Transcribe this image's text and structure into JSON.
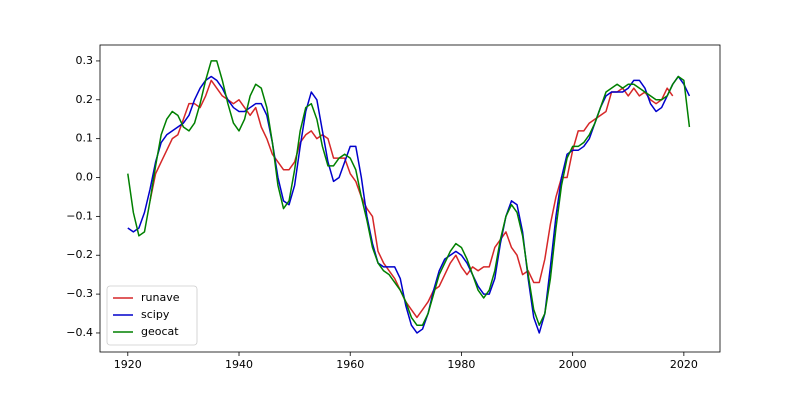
{
  "chart_data": {
    "type": "line",
    "x": [
      1920,
      1921,
      1922,
      1923,
      1924,
      1925,
      1926,
      1927,
      1928,
      1929,
      1930,
      1931,
      1932,
      1933,
      1934,
      1935,
      1936,
      1937,
      1938,
      1939,
      1940,
      1941,
      1942,
      1943,
      1944,
      1945,
      1946,
      1947,
      1948,
      1949,
      1950,
      1951,
      1952,
      1953,
      1954,
      1955,
      1956,
      1957,
      1958,
      1959,
      1960,
      1961,
      1962,
      1963,
      1964,
      1965,
      1966,
      1967,
      1968,
      1969,
      1970,
      1971,
      1972,
      1973,
      1974,
      1975,
      1976,
      1977,
      1978,
      1979,
      1980,
      1981,
      1982,
      1983,
      1984,
      1985,
      1986,
      1987,
      1988,
      1989,
      1990,
      1991,
      1992,
      1993,
      1994,
      1995,
      1996,
      1997,
      1998,
      1999,
      2000,
      2001,
      2002,
      2003,
      2004,
      2005,
      2006,
      2007,
      2008,
      2009,
      2010,
      2011,
      2012,
      2013,
      2014,
      2015,
      2016,
      2017,
      2018,
      2019,
      2020,
      2021
    ],
    "series": [
      {
        "name": "runave",
        "color": "#d62728",
        "values": [
          null,
          null,
          null,
          null,
          -0.06,
          0.01,
          0.04,
          0.07,
          0.1,
          0.11,
          0.15,
          0.19,
          0.19,
          0.18,
          0.21,
          0.25,
          0.23,
          0.21,
          0.2,
          0.19,
          0.2,
          0.18,
          0.16,
          0.18,
          0.13,
          0.1,
          0.06,
          0.04,
          0.02,
          0.02,
          0.04,
          0.09,
          0.11,
          0.12,
          0.1,
          0.11,
          0.1,
          0.05,
          0.05,
          0.05,
          0.01,
          -0.01,
          -0.05,
          -0.08,
          -0.1,
          -0.19,
          -0.22,
          -0.24,
          -0.26,
          -0.29,
          -0.32,
          -0.34,
          -0.36,
          -0.34,
          -0.32,
          -0.29,
          -0.28,
          -0.25,
          -0.22,
          -0.2,
          -0.23,
          -0.25,
          -0.23,
          -0.24,
          -0.23,
          -0.23,
          -0.18,
          -0.16,
          -0.14,
          -0.18,
          -0.2,
          -0.25,
          -0.24,
          -0.27,
          -0.27,
          -0.21,
          -0.12,
          -0.05,
          0.0,
          0.0,
          0.07,
          0.12,
          0.12,
          0.14,
          0.15,
          0.16,
          0.17,
          0.22,
          0.22,
          0.23,
          0.21,
          0.23,
          0.21,
          0.22,
          0.2,
          0.19,
          0.2,
          0.23,
          0.21,
          null,
          null,
          null
        ]
      },
      {
        "name": "scipy",
        "color": "#0000cc",
        "values": [
          -0.13,
          -0.14,
          -0.13,
          -0.09,
          -0.03,
          0.04,
          0.09,
          0.11,
          0.12,
          0.13,
          0.14,
          0.16,
          0.2,
          0.23,
          0.25,
          0.26,
          0.25,
          0.23,
          0.2,
          0.18,
          0.17,
          0.17,
          0.18,
          0.19,
          0.19,
          0.16,
          0.09,
          0.0,
          -0.06,
          -0.07,
          -0.02,
          0.08,
          0.17,
          0.22,
          0.2,
          0.12,
          0.04,
          -0.01,
          0.0,
          0.04,
          0.08,
          0.08,
          0.0,
          -0.1,
          -0.17,
          -0.22,
          -0.23,
          -0.23,
          -0.23,
          -0.26,
          -0.33,
          -0.38,
          -0.4,
          -0.39,
          -0.35,
          -0.29,
          -0.24,
          -0.21,
          -0.2,
          -0.19,
          -0.2,
          -0.22,
          -0.25,
          -0.28,
          -0.3,
          -0.3,
          -0.26,
          -0.17,
          -0.1,
          -0.06,
          -0.07,
          -0.14,
          -0.26,
          -0.36,
          -0.4,
          -0.35,
          -0.23,
          -0.1,
          0.0,
          0.06,
          0.07,
          0.07,
          0.08,
          0.1,
          0.14,
          0.18,
          0.21,
          0.22,
          0.22,
          0.22,
          0.23,
          0.25,
          0.25,
          0.23,
          0.19,
          0.17,
          0.18,
          0.21,
          0.24,
          0.26,
          0.24,
          0.21
        ]
      },
      {
        "name": "geocat",
        "color": "#008000",
        "values": [
          0.01,
          -0.09,
          -0.15,
          -0.14,
          -0.06,
          0.03,
          0.11,
          0.15,
          0.17,
          0.16,
          0.13,
          0.12,
          0.14,
          0.19,
          0.25,
          0.3,
          0.3,
          0.25,
          0.19,
          0.14,
          0.12,
          0.15,
          0.21,
          0.24,
          0.23,
          0.18,
          0.09,
          -0.02,
          -0.08,
          -0.06,
          0.02,
          0.12,
          0.18,
          0.19,
          0.15,
          0.08,
          0.03,
          0.03,
          0.05,
          0.06,
          0.05,
          0.02,
          -0.05,
          -0.11,
          -0.18,
          -0.22,
          -0.24,
          -0.25,
          -0.27,
          -0.29,
          -0.32,
          -0.36,
          -0.38,
          -0.38,
          -0.35,
          -0.3,
          -0.25,
          -0.22,
          -0.19,
          -0.17,
          -0.18,
          -0.21,
          -0.25,
          -0.29,
          -0.31,
          -0.29,
          -0.24,
          -0.16,
          -0.1,
          -0.07,
          -0.09,
          -0.15,
          -0.25,
          -0.34,
          -0.38,
          -0.35,
          -0.26,
          -0.13,
          -0.02,
          0.05,
          0.08,
          0.08,
          0.09,
          0.11,
          0.14,
          0.18,
          0.22,
          0.23,
          0.24,
          0.23,
          0.24,
          0.24,
          0.23,
          0.22,
          0.21,
          0.2,
          0.2,
          0.21,
          0.24,
          0.26,
          0.25,
          0.13
        ]
      }
    ],
    "xlim": [
      1915,
      2026.5
    ],
    "ylim": [
      -0.449,
      0.341
    ],
    "xticks": [
      1920,
      1940,
      1960,
      1980,
      2000,
      2020
    ],
    "yticks": [
      {
        "value": -0.4,
        "label": "−0.4"
      },
      {
        "value": -0.3,
        "label": "−0.3"
      },
      {
        "value": -0.2,
        "label": "−0.2"
      },
      {
        "value": -0.1,
        "label": "−0.1"
      },
      {
        "value": 0,
        "label": "0.0"
      },
      0.1,
      0.2,
      0.3
    ],
    "legend": "lower left"
  }
}
